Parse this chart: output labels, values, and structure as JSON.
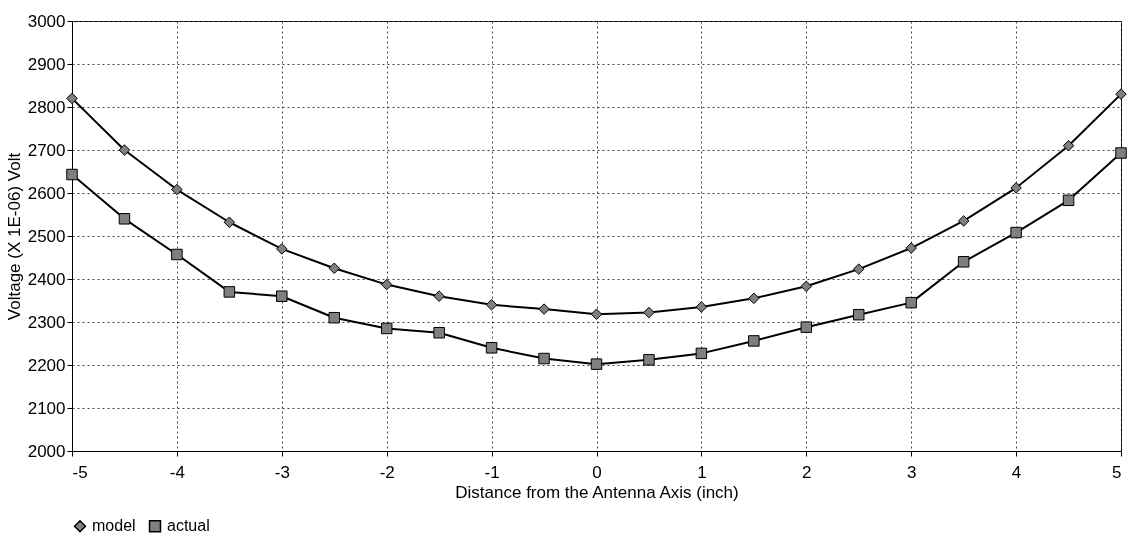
{
  "chart_data": {
    "type": "line",
    "xlabel": "Distance from the Antenna Axis (inch)",
    "ylabel": "Voltage (X 1E-06) Volt",
    "x": [
      -5,
      -4.5,
      -4,
      -3.5,
      -3,
      -2.5,
      -2,
      -1.5,
      -1,
      -0.5,
      0,
      0.5,
      1,
      1.5,
      2,
      2.5,
      3,
      3.5,
      4,
      4.5,
      5
    ],
    "series": [
      {
        "name": "model",
        "color": "#7f7f7f",
        "marker": "diamond",
        "values": [
          2820,
          2700,
          2608,
          2532,
          2470,
          2425,
          2387,
          2360,
          2340,
          2330,
          2318,
          2322,
          2335,
          2355,
          2383,
          2423,
          2472,
          2535,
          2612,
          2710,
          2830
        ]
      },
      {
        "name": "actual",
        "color": "#7f7f7f",
        "marker": "square",
        "values": [
          2643,
          2540,
          2457,
          2370,
          2360,
          2310,
          2285,
          2275,
          2240,
          2215,
          2202,
          2212,
          2227,
          2256,
          2288,
          2317,
          2345,
          2440,
          2508,
          2583,
          2693
        ]
      }
    ],
    "xlim": [
      -5,
      5
    ],
    "xticks": [
      -5,
      -4,
      -3,
      -2,
      -1,
      0,
      1,
      2,
      3,
      4,
      5
    ],
    "ylim": [
      2000,
      3000
    ],
    "yticks": [
      2000,
      2100,
      2200,
      2300,
      2400,
      2500,
      2600,
      2700,
      2800,
      2900,
      3000
    ],
    "grid": true,
    "legend": "bottom",
    "line_style": "solid"
  }
}
